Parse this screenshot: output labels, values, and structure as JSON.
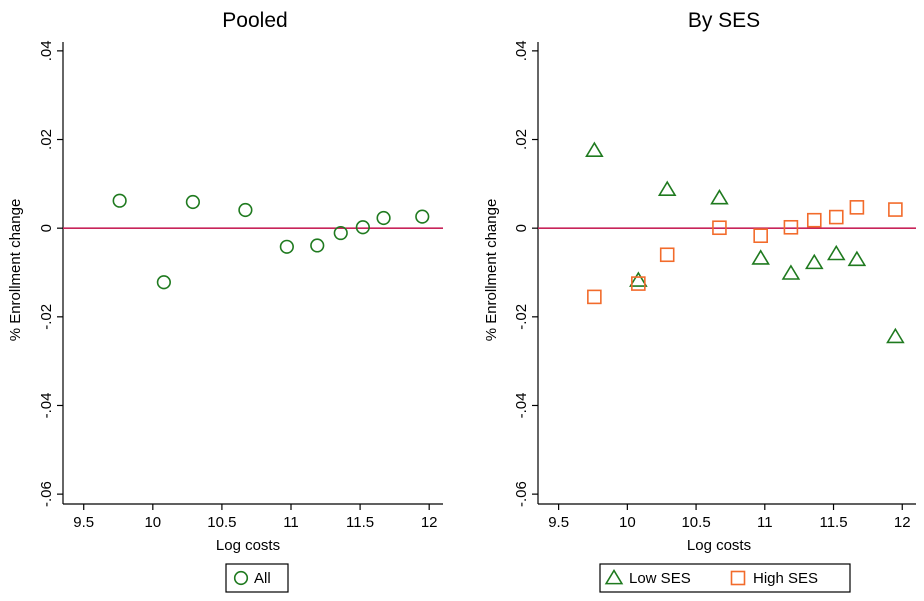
{
  "colors": {
    "low": "#1f7a1f",
    "high": "#f26b2b",
    "ref_line": "#c8245a"
  },
  "chart_data": [
    {
      "type": "scatter",
      "title": "Pooled",
      "xlabel": "Log costs",
      "ylabel": "% Enrollment change",
      "xlim": [
        9.35,
        12.1
      ],
      "ylim": [
        -0.062,
        0.042
      ],
      "xticks": [
        9.5,
        10,
        10.5,
        11,
        11.5,
        12
      ],
      "xtick_labels": [
        "9.5",
        "10",
        "10.5",
        "11",
        "11.5",
        "12"
      ],
      "yticks": [
        0.04,
        0.02,
        0,
        -0.02,
        -0.04,
        -0.06
      ],
      "ytick_labels": [
        ".04",
        ".02",
        "0",
        "-.02",
        "-.04",
        "-.06"
      ],
      "reference_y": 0,
      "legend_position": "bottom",
      "series": [
        {
          "name": "All",
          "marker": "circle",
          "color": "#1f7a1f",
          "x": [
            9.76,
            10.08,
            10.29,
            10.67,
            10.97,
            11.19,
            11.36,
            11.52,
            11.67,
            11.95
          ],
          "y": [
            0.0062,
            -0.0122,
            0.0059,
            0.0041,
            -0.0042,
            -0.0039,
            -0.0011,
            0.0002,
            0.0023,
            0.0026
          ]
        }
      ]
    },
    {
      "type": "scatter",
      "title": "By SES",
      "xlabel": "Log costs",
      "ylabel": "% Enrollment change",
      "xlim": [
        9.35,
        12.1
      ],
      "ylim": [
        -0.062,
        0.042
      ],
      "xticks": [
        9.5,
        10,
        10.5,
        11,
        11.5,
        12
      ],
      "xtick_labels": [
        "9.5",
        "10",
        "10.5",
        "11",
        "11.5",
        "12"
      ],
      "yticks": [
        0.04,
        0.02,
        0,
        -0.02,
        -0.04,
        -0.06
      ],
      "ytick_labels": [
        ".04",
        ".02",
        "0",
        "-.02",
        "-.04",
        "-.06"
      ],
      "reference_y": 0,
      "legend_position": "bottom",
      "series": [
        {
          "name": "Low SES",
          "marker": "triangle",
          "color": "#1f7a1f",
          "x": [
            9.76,
            10.08,
            10.29,
            10.67,
            10.97,
            11.19,
            11.36,
            11.52,
            11.67,
            11.95
          ],
          "y": [
            0.0175,
            -0.0118,
            0.0087,
            0.0068,
            -0.0068,
            -0.0102,
            -0.0078,
            -0.0058,
            -0.0071,
            -0.0245
          ]
        },
        {
          "name": "High SES",
          "marker": "square",
          "color": "#f26b2b",
          "x": [
            9.76,
            10.08,
            10.29,
            10.67,
            10.97,
            11.19,
            11.36,
            11.52,
            11.67,
            11.95
          ],
          "y": [
            -0.0155,
            -0.0125,
            -0.006,
            0.0001,
            -0.0017,
            0.0002,
            0.0018,
            0.0025,
            0.0047,
            0.0042
          ]
        }
      ]
    }
  ]
}
